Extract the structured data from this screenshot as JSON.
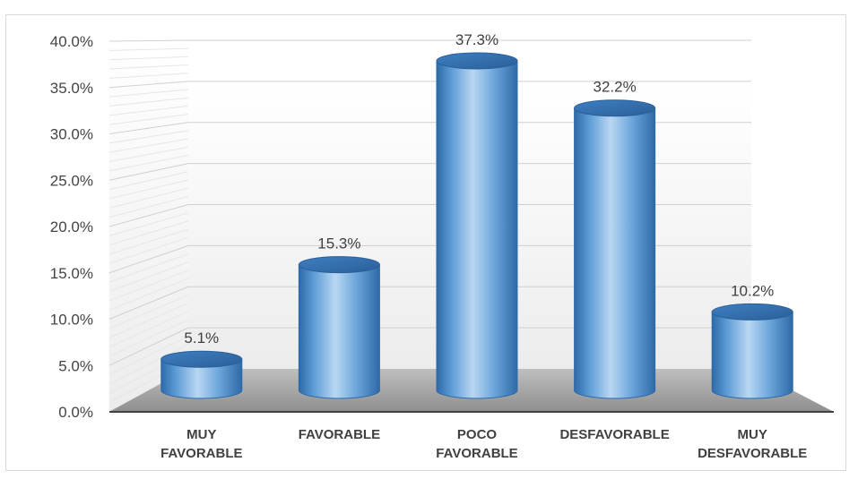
{
  "chart_data": {
    "type": "bar",
    "style": "3d-cylinder",
    "categories": [
      [
        "MUY",
        "FAVORABLE"
      ],
      [
        "FAVORABLE"
      ],
      [
        "POCO",
        "FAVORABLE"
      ],
      [
        "DESFAVORABLE"
      ],
      [
        "MUY",
        "DESFAVORABLE"
      ]
    ],
    "values": [
      5.1,
      15.3,
      37.3,
      32.2,
      10.2
    ],
    "data_labels": [
      "5.1%",
      "15.3%",
      "37.3%",
      "32.2%",
      "10.2%"
    ],
    "y_ticks": [
      "0.0%",
      "5.0%",
      "10.0%",
      "15.0%",
      "20.0%",
      "25.0%",
      "30.0%",
      "35.0%",
      "40.0%"
    ],
    "ylim": [
      0,
      40
    ],
    "grid": true,
    "legend": "none",
    "colors": {
      "bar": "#5b9bd5",
      "bar_dark": "#2e6aa8",
      "bar_light": "#b9d7f2",
      "floor": "#a6a6a6",
      "wall": "#f2f2f2",
      "axis": "#404040"
    }
  }
}
